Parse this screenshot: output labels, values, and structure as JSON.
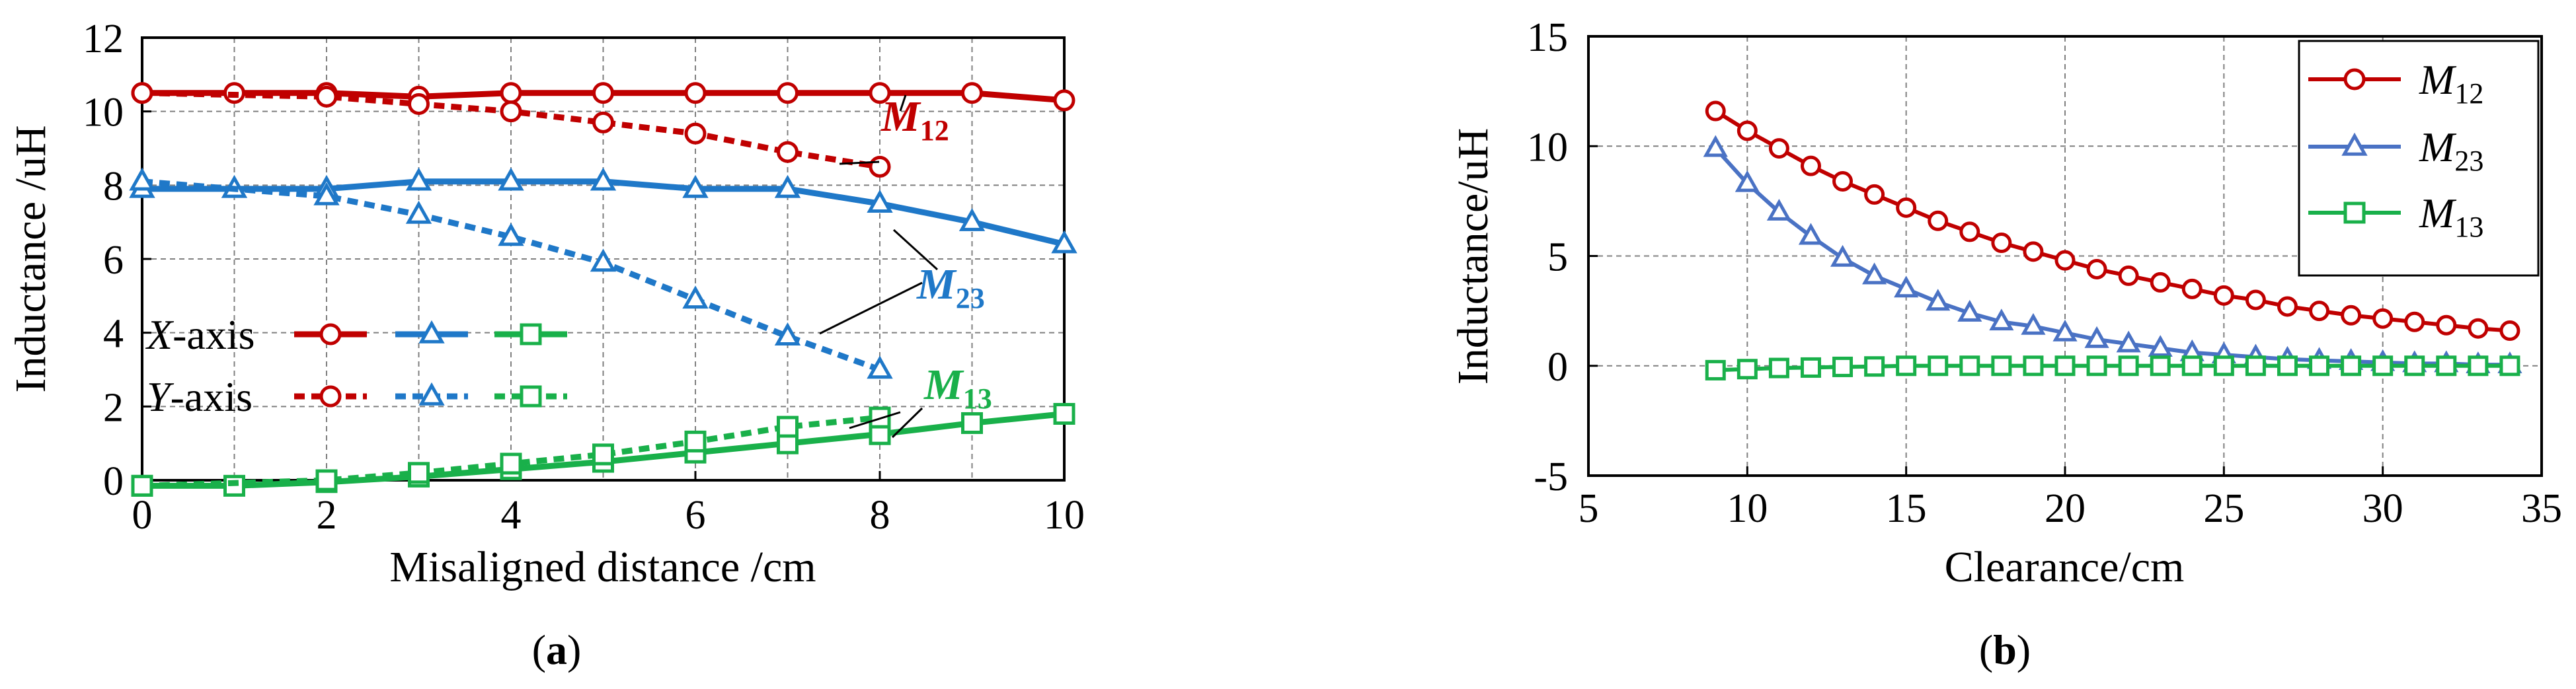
{
  "colors": {
    "red": "#c00000",
    "blue": "#1f78c8",
    "blue_b": "#4a72c4",
    "green": "#19b04a",
    "grid": "#7f7f7f",
    "axis": "#000000"
  },
  "panels": [
    {
      "caption": "a",
      "caption_open": "(",
      "caption_close": ")"
    },
    {
      "caption": "b",
      "caption_open": "(",
      "caption_close": ")"
    }
  ],
  "chart_data": [
    {
      "type": "line",
      "xlabel": "Misaligned distance /cm",
      "ylabel": "Inductance /uH",
      "xlim": [
        0,
        10
      ],
      "ylim": [
        0,
        12
      ],
      "grid": true,
      "xticks": [
        0,
        2,
        4,
        6,
        8,
        10
      ],
      "yticks": [
        0,
        2,
        4,
        6,
        8,
        10,
        12
      ],
      "xtick_labels": [
        "0",
        "2",
        "4",
        "6",
        "8",
        "10"
      ],
      "ytick_labels": [
        "0",
        "2",
        "4",
        "6",
        "8",
        "10",
        "12"
      ],
      "legend": {
        "placement": "middle-left",
        "rows": [
          {
            "axis_letter": "X",
            "suffix": "-axis",
            "line_style": "solid"
          },
          {
            "axis_letter": "Y",
            "suffix": "-axis",
            "line_style": "dashed"
          }
        ]
      },
      "annotations": [
        {
          "main": "M",
          "sub": "12",
          "target": "M12"
        },
        {
          "main": "M",
          "sub": "23",
          "target": "M23"
        },
        {
          "main": "M",
          "sub": "13",
          "target": "M13"
        }
      ],
      "series": [
        {
          "quantity": "M12",
          "direction": "X-axis",
          "color": "red",
          "marker": "circle",
          "line_style": "solid",
          "x": [
            0,
            1,
            2,
            3,
            4,
            5,
            6,
            7,
            8,
            9,
            10
          ],
          "y": [
            10.5,
            10.5,
            10.5,
            10.4,
            10.5,
            10.5,
            10.5,
            10.5,
            10.5,
            10.5,
            10.3
          ]
        },
        {
          "quantity": "M12",
          "direction": "Y-axis",
          "color": "red",
          "marker": "circle",
          "line_style": "dashed",
          "x": [
            0,
            2,
            3,
            4,
            5,
            6,
            7,
            8
          ],
          "y": [
            10.5,
            10.4,
            10.2,
            10.0,
            9.7,
            9.4,
            8.9,
            8.5
          ]
        },
        {
          "quantity": "M23",
          "direction": "X-axis",
          "color": "blue",
          "marker": "triangle",
          "line_style": "solid",
          "x": [
            0,
            1,
            2,
            3,
            4,
            5,
            6,
            7,
            8,
            9,
            10
          ],
          "y": [
            7.9,
            7.9,
            7.9,
            8.1,
            8.1,
            8.1,
            7.9,
            7.9,
            7.5,
            7.0,
            6.4
          ]
        },
        {
          "quantity": "M23",
          "direction": "Y-axis",
          "color": "blue",
          "marker": "triangle",
          "line_style": "dashed",
          "x": [
            0,
            2,
            3,
            4,
            5,
            6,
            7,
            8
          ],
          "y": [
            8.1,
            7.7,
            7.2,
            6.6,
            5.9,
            4.9,
            3.9,
            3.0
          ]
        },
        {
          "quantity": "M13",
          "direction": "X-axis",
          "color": "green",
          "marker": "square",
          "line_style": "solid",
          "x": [
            0,
            1,
            2,
            3,
            4,
            5,
            6,
            7,
            8,
            9,
            10
          ],
          "y": [
            -0.15,
            -0.15,
            -0.05,
            0.1,
            0.3,
            0.5,
            0.75,
            1.0,
            1.25,
            1.55,
            1.8
          ]
        },
        {
          "quantity": "M13",
          "direction": "Y-axis",
          "color": "green",
          "marker": "square",
          "line_style": "dashed",
          "x": [
            0,
            2,
            3,
            4,
            5,
            6,
            7,
            8
          ],
          "y": [
            -0.15,
            0.0,
            0.2,
            0.45,
            0.7,
            1.05,
            1.45,
            1.7
          ]
        }
      ]
    },
    {
      "type": "line",
      "xlabel": "Clearance/cm",
      "ylabel": "Inductance/uH",
      "xlim": [
        5,
        35
      ],
      "ylim": [
        -5,
        15
      ],
      "grid": true,
      "xticks": [
        5,
        10,
        15,
        20,
        25,
        30,
        35
      ],
      "yticks": [
        -5,
        0,
        5,
        10,
        15
      ],
      "xtick_labels": [
        "5",
        "10",
        "15",
        "20",
        "25",
        "30",
        "35"
      ],
      "ytick_labels": [
        "-5",
        "0",
        "5",
        "10",
        "15"
      ],
      "legend": {
        "placement": "top-right"
      },
      "series": [
        {
          "name": "M",
          "sub": "12",
          "color": "red",
          "marker": "circle",
          "x": [
            9,
            10,
            11,
            12,
            13,
            14,
            15,
            16,
            17,
            18,
            19,
            20,
            21,
            22,
            23,
            24,
            25,
            26,
            27,
            28,
            29,
            30,
            31,
            32,
            33,
            34
          ],
          "y": [
            11.6,
            10.7,
            9.9,
            9.1,
            8.4,
            7.8,
            7.2,
            6.6,
            6.1,
            5.6,
            5.2,
            4.8,
            4.4,
            4.1,
            3.8,
            3.5,
            3.2,
            3.0,
            2.7,
            2.5,
            2.3,
            2.15,
            2.0,
            1.85,
            1.7,
            1.6
          ]
        },
        {
          "name": "M",
          "sub": "23",
          "color": "blue_b",
          "marker": "triangle",
          "x": [
            9,
            10,
            11,
            12,
            13,
            14,
            15,
            16,
            17,
            18,
            19,
            20,
            21,
            22,
            23,
            24,
            25,
            26,
            27,
            28,
            29,
            30,
            31,
            32,
            33,
            34
          ],
          "y": [
            9.9,
            8.3,
            7.0,
            5.9,
            4.9,
            4.1,
            3.5,
            2.9,
            2.4,
            2.0,
            1.8,
            1.5,
            1.2,
            1.0,
            0.8,
            0.6,
            0.5,
            0.4,
            0.3,
            0.25,
            0.2,
            0.15,
            0.1,
            0.1,
            0.05,
            0.05
          ]
        },
        {
          "name": "M",
          "sub": "13",
          "color": "green",
          "marker": "square",
          "x": [
            9,
            10,
            11,
            12,
            13,
            14,
            15,
            16,
            17,
            18,
            19,
            20,
            21,
            22,
            23,
            24,
            25,
            26,
            27,
            28,
            29,
            30,
            31,
            32,
            33,
            34
          ],
          "y": [
            -0.2,
            -0.15,
            -0.1,
            -0.08,
            -0.05,
            -0.03,
            0,
            0,
            0,
            0,
            0,
            0,
            0,
            0,
            0,
            0,
            0,
            0,
            0,
            0,
            0,
            0,
            0,
            0,
            0,
            0
          ]
        }
      ]
    }
  ]
}
